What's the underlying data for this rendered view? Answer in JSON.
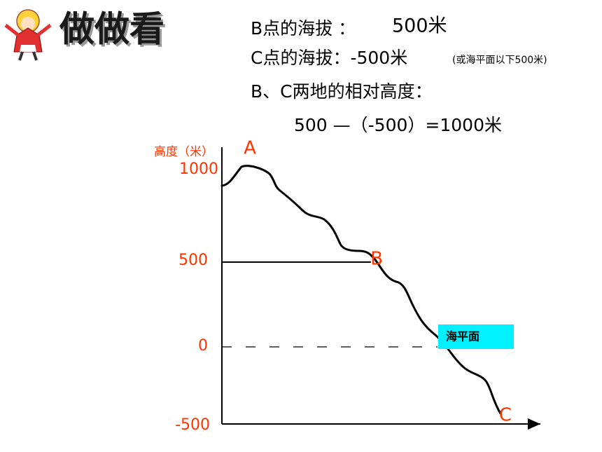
{
  "header": {
    "title": "做做看"
  },
  "lines": [
    {
      "text": "B点的海拔 ：",
      "value": "500米"
    },
    {
      "text": "C点的海拔：-500米",
      "note": "(或海平面以下500米)"
    },
    {
      "text": "B、C两地的相对高度："
    },
    {
      "text": "500 —（-500）=1000米"
    }
  ],
  "diagram": {
    "axis_label": "高度（米）",
    "ticks": [
      "1000",
      "500",
      "0",
      "-500"
    ],
    "points": [
      "A",
      "B",
      "C"
    ],
    "sea_level": "海平面"
  }
}
